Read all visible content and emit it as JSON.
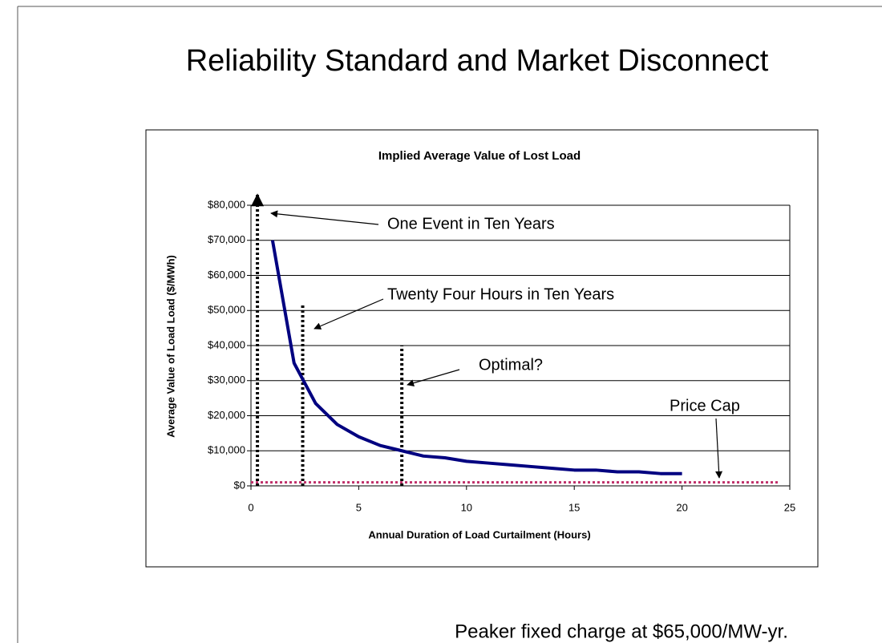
{
  "title": "Reliability Standard and Market Disconnect",
  "footer": "Peaker fixed charge at $65,000/MW-yr.",
  "chart_data": {
    "type": "line",
    "title": "Implied Average Value of Lost Load",
    "x_label": "Annual Duration of Load Curtailment (Hours)",
    "y_label": "Average Value of Load Load ($/MWh)",
    "xlim": [
      0,
      25
    ],
    "xticks": [
      0,
      5,
      10,
      15,
      20,
      25
    ],
    "ylim": [
      0,
      80000
    ],
    "yticks": [
      {
        "value": 0,
        "label": "$0"
      },
      {
        "value": 10000,
        "label": "$10,000"
      },
      {
        "value": 20000,
        "label": "$20,000"
      },
      {
        "value": 30000,
        "label": "$30,000"
      },
      {
        "value": 40000,
        "label": "$40,000"
      },
      {
        "value": 50000,
        "label": "$50,000"
      },
      {
        "value": 60000,
        "label": "$60,000"
      },
      {
        "value": 70000,
        "label": "$70,000"
      },
      {
        "value": 80000,
        "label": "$80,000"
      }
    ],
    "grid": true,
    "series": [
      {
        "color": "#000080",
        "dotted": false,
        "x": [
          1,
          2,
          3,
          4,
          5,
          6,
          7,
          8,
          9,
          10,
          11,
          12,
          13,
          14,
          15,
          16,
          17,
          18,
          19,
          20
        ],
        "values": [
          70000,
          35000,
          23500,
          17500,
          14000,
          11500,
          10000,
          8500,
          8000,
          7000,
          6500,
          6000,
          5500,
          5000,
          4500,
          4500,
          4000,
          4000,
          3500,
          3500
        ]
      },
      {
        "color": "#c0306a",
        "dotted": true,
        "x": [
          0,
          24.5
        ],
        "values": [
          1000,
          1000
        ]
      }
    ],
    "reference_lines": [
      {
        "x": 0.3,
        "top": 83000,
        "arrow": true
      },
      {
        "x": 2.4,
        "top": 52000,
        "arrow": false
      },
      {
        "x": 7,
        "top": 40000,
        "arrow": false
      }
    ],
    "annotations": [
      "One Event in Ten Years",
      "Twenty Four Hours in Ten Years",
      "Optimal?",
      "Price Cap"
    ]
  }
}
